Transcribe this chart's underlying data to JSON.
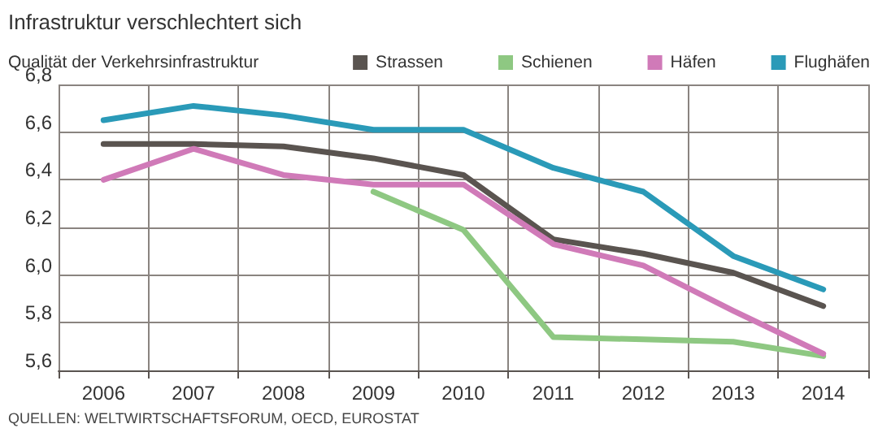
{
  "chart_data": {
    "type": "line",
    "title": "Infrastruktur verschlechtert sich",
    "subtitle": "Qualität der Verkehrsinfrastruktur",
    "categories": [
      "2006",
      "2007",
      "2008",
      "2009",
      "2010",
      "2011",
      "2012",
      "2013",
      "2014"
    ],
    "series": [
      {
        "name": "Strassen",
        "color": "#5a5450",
        "values": [
          6.55,
          6.55,
          6.54,
          6.49,
          6.42,
          6.15,
          6.09,
          6.01,
          5.87
        ]
      },
      {
        "name": "Schienen",
        "color": "#8ec882",
        "values": [
          null,
          null,
          null,
          6.35,
          6.19,
          5.74,
          5.73,
          5.72,
          5.66
        ]
      },
      {
        "name": "Häfen",
        "color": "#d07ab8",
        "values": [
          6.4,
          6.53,
          6.42,
          6.38,
          6.38,
          6.13,
          6.04,
          5.85,
          5.67
        ]
      },
      {
        "name": "Flughäfen",
        "color": "#2a9ab8",
        "values": [
          6.65,
          6.71,
          6.67,
          6.61,
          6.61,
          6.45,
          6.35,
          6.08,
          5.94
        ]
      }
    ],
    "ylim": [
      5.6,
      6.8
    ],
    "yticks": [
      {
        "value": 5.6,
        "label": "5,6"
      },
      {
        "value": 5.8,
        "label": "5,8"
      },
      {
        "value": 6.0,
        "label": "6,0"
      },
      {
        "value": 6.2,
        "label": "6,2"
      },
      {
        "value": 6.4,
        "label": "6,4"
      },
      {
        "value": 6.6,
        "label": "6,6"
      },
      {
        "value": 6.8,
        "label": "6,8"
      }
    ],
    "grid": true,
    "legend": "top right",
    "marker": "none",
    "line_style": "solid",
    "annotations": [
      "QUELLEN: WELTWIRTSCHAFTSFORUM, OECD, EUROSTAT"
    ]
  }
}
